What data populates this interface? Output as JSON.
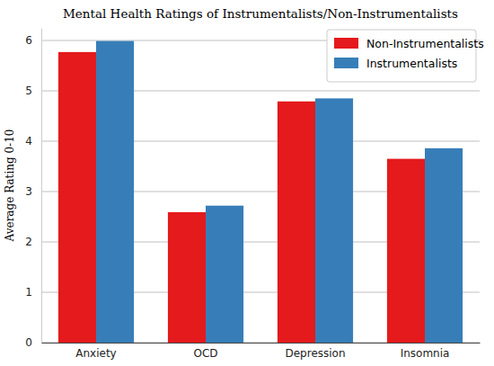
{
  "chart_data": {
    "type": "bar",
    "title": "Mental Health Ratings of Instrumentalists/Non-Instrumentalists",
    "y_label": "Average Rating 0-10",
    "categories": [
      "Anxiety",
      "OCD",
      "Depression",
      "Insomnia"
    ],
    "series": [
      {
        "name": "Non-Instrumentalists",
        "color": "#e41a1c",
        "values": [
          5.77,
          2.59,
          4.79,
          3.65
        ]
      },
      {
        "name": "Instrumentalists",
        "color": "#377eb8",
        "values": [
          5.99,
          2.72,
          4.85,
          3.86
        ]
      }
    ],
    "ylim": [
      0,
      6.25
    ],
    "yticks": [
      0,
      1,
      2,
      3,
      4,
      5,
      6
    ],
    "grid": true,
    "legend": "upper right"
  }
}
